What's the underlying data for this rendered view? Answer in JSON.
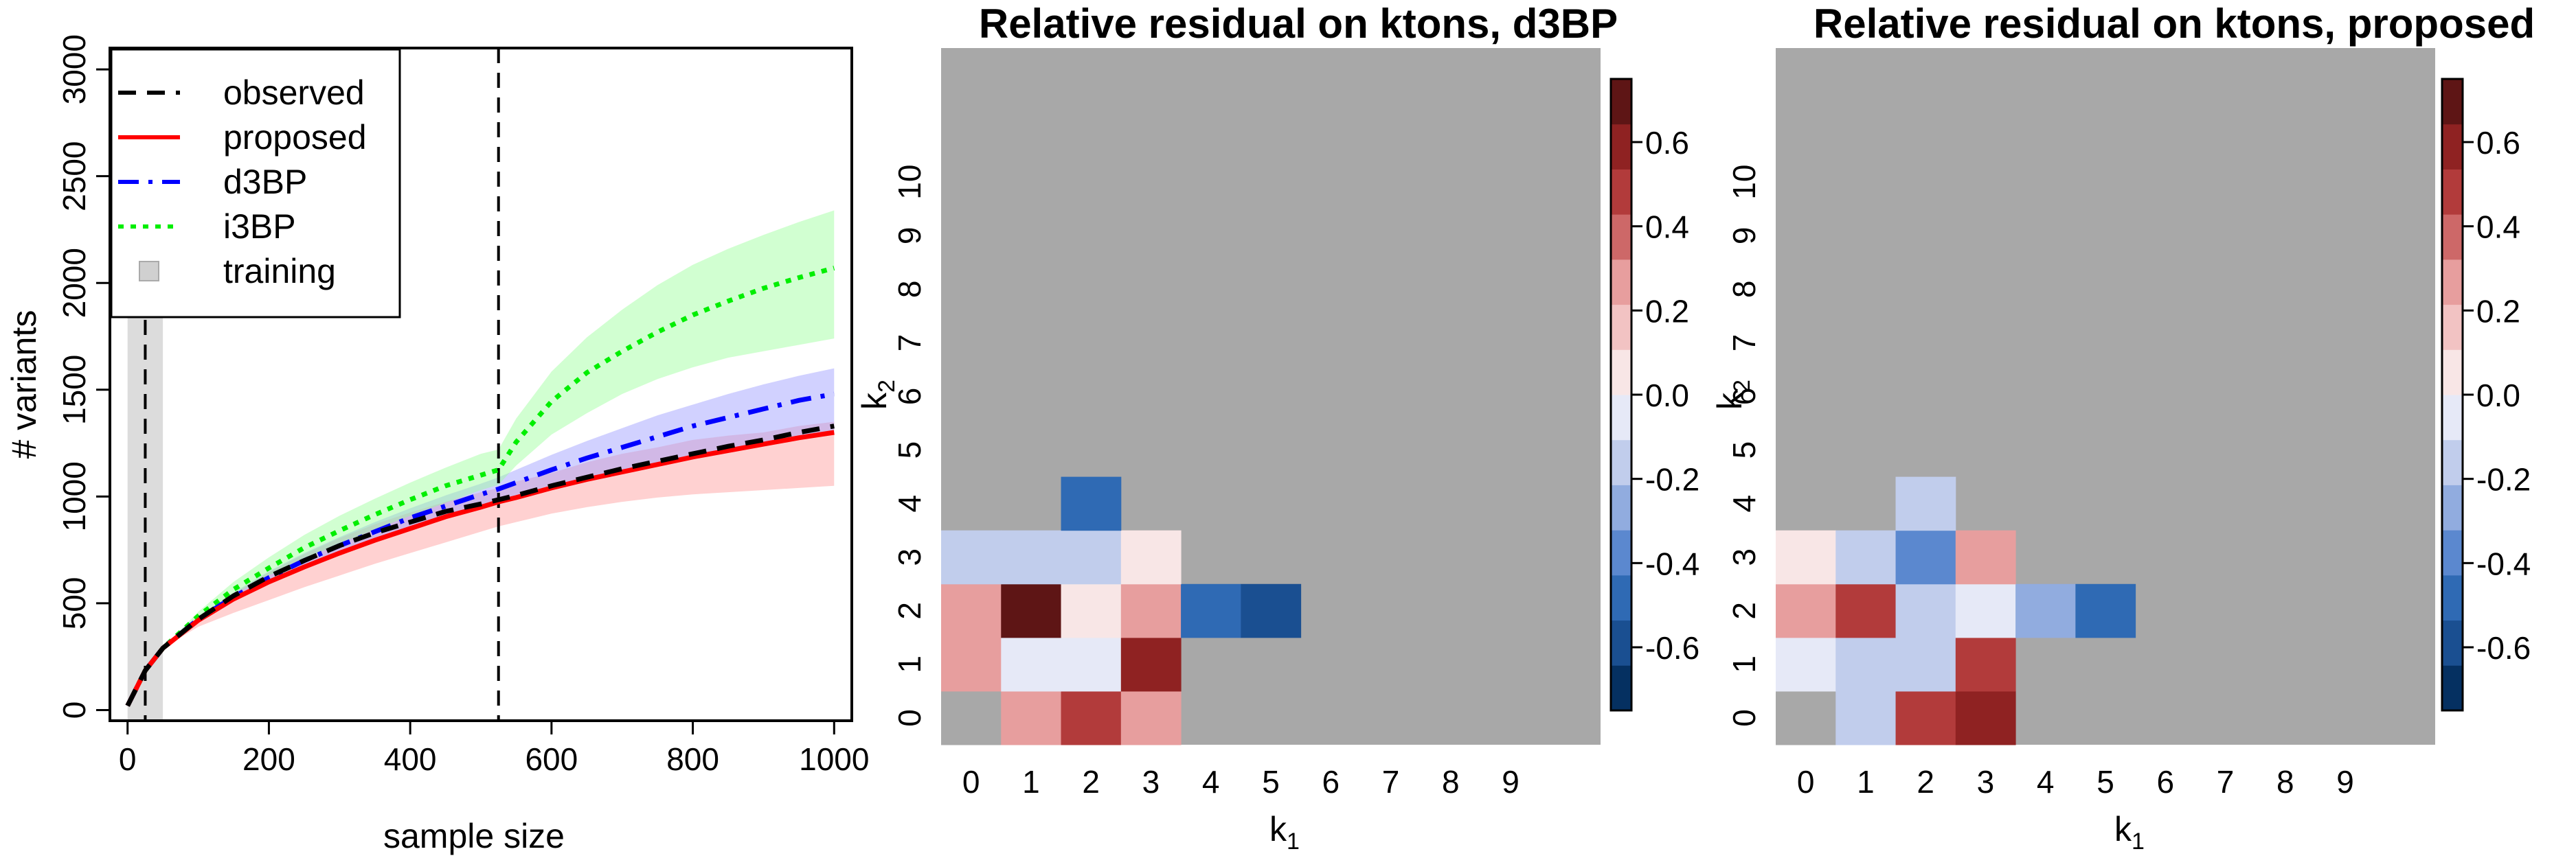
{
  "chart_data": [
    {
      "type": "line",
      "title": "",
      "xlabel": "sample size",
      "ylabel": "# variants",
      "xlim": [
        -25,
        1025
      ],
      "ylim": [
        -50,
        3100
      ],
      "xticks": [
        "0",
        "200",
        "400",
        "600",
        "800",
        "1000"
      ],
      "yticks": [
        "0",
        "500",
        "1000",
        "1500",
        "2000",
        "2500",
        "3000"
      ],
      "ytick_values": [
        0,
        500,
        1000,
        1500,
        2000,
        2500,
        3000
      ],
      "xtick_values": [
        0,
        200,
        400,
        600,
        800,
        1000
      ],
      "vlines": [
        25,
        525
      ],
      "training_region": [
        0,
        50
      ],
      "legend_position": "top-left",
      "legend": [
        {
          "name": "observed",
          "style": "dashed",
          "color": "#000000"
        },
        {
          "name": "proposed",
          "style": "solid",
          "color": "#ff0000"
        },
        {
          "name": "d3BP",
          "style": "dashdot",
          "color": "#0000ff"
        },
        {
          "name": "i3BP",
          "style": "dotted",
          "color": "#00ee00"
        },
        {
          "name": "training",
          "style": "square",
          "color": "#d0d0d0"
        }
      ],
      "x": [
        0,
        25,
        50,
        100,
        150,
        200,
        250,
        300,
        350,
        400,
        450,
        500,
        525,
        550,
        600,
        650,
        700,
        750,
        800,
        850,
        900,
        950,
        1000
      ],
      "series": [
        {
          "name": "observed",
          "color": "#000000",
          "dash": "dashed",
          "values": [
            20,
            185,
            290,
            425,
            535,
            625,
            700,
            770,
            830,
            880,
            930,
            965,
            985,
            1005,
            1050,
            1090,
            1130,
            1165,
            1200,
            1235,
            1265,
            1300,
            1330
          ]
        },
        {
          "name": "proposed",
          "color": "#ff0000",
          "dash": "solid",
          "values": [
            20,
            185,
            290,
            420,
            520,
            600,
            670,
            735,
            795,
            850,
            905,
            950,
            975,
            995,
            1040,
            1080,
            1115,
            1150,
            1185,
            1215,
            1245,
            1275,
            1300
          ],
          "lower": [
            20,
            185,
            290,
            390,
            455,
            515,
            575,
            630,
            685,
            735,
            785,
            835,
            860,
            880,
            920,
            950,
            975,
            995,
            1010,
            1020,
            1030,
            1040,
            1050
          ],
          "upper": [
            20,
            185,
            290,
            430,
            545,
            645,
            730,
            805,
            870,
            925,
            975,
            1020,
            1040,
            1070,
            1110,
            1160,
            1200,
            1230,
            1265,
            1285,
            1300,
            1330,
            1350
          ],
          "band_color": "#ff9999"
        },
        {
          "name": "d3BP",
          "color": "#0000ff",
          "dash": "dashdot",
          "values": [
            20,
            185,
            290,
            425,
            530,
            620,
            700,
            770,
            835,
            900,
            955,
            1010,
            1035,
            1065,
            1125,
            1180,
            1230,
            1280,
            1330,
            1370,
            1410,
            1450,
            1480
          ],
          "lower": [
            20,
            185,
            290,
            420,
            520,
            600,
            670,
            735,
            795,
            850,
            905,
            950,
            975,
            995,
            1040,
            1080,
            1115,
            1150,
            1185,
            1215,
            1245,
            1275,
            1300
          ],
          "upper": [
            20,
            185,
            290,
            435,
            550,
            650,
            735,
            810,
            880,
            945,
            1005,
            1060,
            1090,
            1125,
            1195,
            1260,
            1320,
            1380,
            1430,
            1480,
            1525,
            1565,
            1600
          ],
          "band_color": "#9999ff"
        },
        {
          "name": "i3BP",
          "color": "#00ee00",
          "dash": "dotted",
          "values": [
            20,
            185,
            290,
            440,
            565,
            665,
            760,
            840,
            915,
            985,
            1050,
            1100,
            1125,
            1255,
            1445,
            1580,
            1680,
            1770,
            1850,
            1915,
            1975,
            2025,
            2070
          ],
          "lower": [
            20,
            185,
            290,
            425,
            540,
            630,
            705,
            780,
            845,
            910,
            970,
            1030,
            1055,
            1145,
            1290,
            1390,
            1480,
            1550,
            1605,
            1650,
            1680,
            1710,
            1740
          ],
          "upper": [
            20,
            185,
            290,
            460,
            600,
            715,
            820,
            910,
            990,
            1065,
            1135,
            1200,
            1220,
            1365,
            1585,
            1745,
            1875,
            1990,
            2085,
            2160,
            2225,
            2285,
            2340
          ],
          "band_color": "#99ff99"
        }
      ]
    },
    {
      "type": "heatmap",
      "title": "Relative residual on ktons, d3BP",
      "xlabel": "k₁",
      "ylabel": "k₂",
      "xticks": [
        "0",
        "1",
        "2",
        "3",
        "4",
        "5",
        "6",
        "7",
        "8",
        "9"
      ],
      "yticks": [
        "0",
        "1",
        "2",
        "3",
        "4",
        "5",
        "6",
        "7",
        "8",
        "9",
        "10"
      ],
      "colorbar_ticks": [
        "-0.6",
        "-0.4",
        "-0.2",
        "0.0",
        "0.2",
        "0.4",
        "0.6"
      ],
      "colorbar_tick_values": [
        -0.6,
        -0.4,
        -0.2,
        0.0,
        0.2,
        0.4,
        0.6
      ],
      "colorbar_range": [
        -0.75,
        0.75
      ],
      "missing_color": "#a8a8a8",
      "cells": [
        {
          "k1": 0,
          "k2": 0,
          "value": null
        },
        {
          "k1": 1,
          "k2": 0,
          "value": 0.25
        },
        {
          "k1": 2,
          "k2": 0,
          "value": 0.45
        },
        {
          "k1": 3,
          "k2": 0,
          "value": 0.25
        },
        {
          "k1": 0,
          "k2": 1,
          "value": 0.25
        },
        {
          "k1": 1,
          "k2": 1,
          "value": -0.05
        },
        {
          "k1": 2,
          "k2": 1,
          "value": -0.05
        },
        {
          "k1": 3,
          "k2": 1,
          "value": 0.55
        },
        {
          "k1": 0,
          "k2": 2,
          "value": 0.25
        },
        {
          "k1": 1,
          "k2": 2,
          "value": 0.72
        },
        {
          "k1": 2,
          "k2": 2,
          "value": 0.05
        },
        {
          "k1": 3,
          "k2": 2,
          "value": 0.25
        },
        {
          "k1": 4,
          "k2": 2,
          "value": -0.45
        },
        {
          "k1": 5,
          "k2": 2,
          "value": -0.6
        },
        {
          "k1": 0,
          "k2": 3,
          "value": -0.15
        },
        {
          "k1": 1,
          "k2": 3,
          "value": -0.15
        },
        {
          "k1": 2,
          "k2": 3,
          "value": -0.15
        },
        {
          "k1": 3,
          "k2": 3,
          "value": 0.05
        },
        {
          "k1": 2,
          "k2": 4,
          "value": -0.45
        }
      ]
    },
    {
      "type": "heatmap",
      "title": "Relative residual on ktons, proposed",
      "xlabel": "k₁",
      "ylabel": "k₂",
      "xticks": [
        "0",
        "1",
        "2",
        "3",
        "4",
        "5",
        "6",
        "7",
        "8",
        "9"
      ],
      "yticks": [
        "0",
        "1",
        "2",
        "3",
        "4",
        "5",
        "6",
        "7",
        "8",
        "9",
        "10"
      ],
      "colorbar_ticks": [
        "-0.6",
        "-0.4",
        "-0.2",
        "0.0",
        "0.2",
        "0.4",
        "0.6"
      ],
      "colorbar_tick_values": [
        -0.6,
        -0.4,
        -0.2,
        0.0,
        0.2,
        0.4,
        0.6
      ],
      "colorbar_range": [
        -0.75,
        0.75
      ],
      "missing_color": "#a8a8a8",
      "cells": [
        {
          "k1": 0,
          "k2": 0,
          "value": null
        },
        {
          "k1": 1,
          "k2": 0,
          "value": -0.15
        },
        {
          "k1": 2,
          "k2": 0,
          "value": 0.45
        },
        {
          "k1": 3,
          "k2": 0,
          "value": 0.6
        },
        {
          "k1": 0,
          "k2": 1,
          "value": -0.05
        },
        {
          "k1": 1,
          "k2": 1,
          "value": -0.15
        },
        {
          "k1": 2,
          "k2": 1,
          "value": -0.15
        },
        {
          "k1": 3,
          "k2": 1,
          "value": 0.45
        },
        {
          "k1": 0,
          "k2": 2,
          "value": 0.25
        },
        {
          "k1": 1,
          "k2": 2,
          "value": 0.45
        },
        {
          "k1": 2,
          "k2": 2,
          "value": -0.15
        },
        {
          "k1": 3,
          "k2": 2,
          "value": -0.05
        },
        {
          "k1": 4,
          "k2": 2,
          "value": -0.25
        },
        {
          "k1": 5,
          "k2": 2,
          "value": -0.45
        },
        {
          "k1": 0,
          "k2": 3,
          "value": 0.05
        },
        {
          "k1": 1,
          "k2": 3,
          "value": -0.15
        },
        {
          "k1": 2,
          "k2": 3,
          "value": -0.35
        },
        {
          "k1": 3,
          "k2": 3,
          "value": 0.25
        },
        {
          "k1": 2,
          "k2": 4,
          "value": -0.15
        }
      ]
    }
  ],
  "colors": {
    "palette": [
      "#053061",
      "#1a4f91",
      "#2f6ab4",
      "#5b88cf",
      "#91acdf",
      "#c1cdec",
      "#e6e9f7",
      "#f8e6e6",
      "#f2c3c3",
      "#e79e9e",
      "#cd6868",
      "#b23b3b",
      "#8f2222",
      "#5e1515"
    ]
  }
}
